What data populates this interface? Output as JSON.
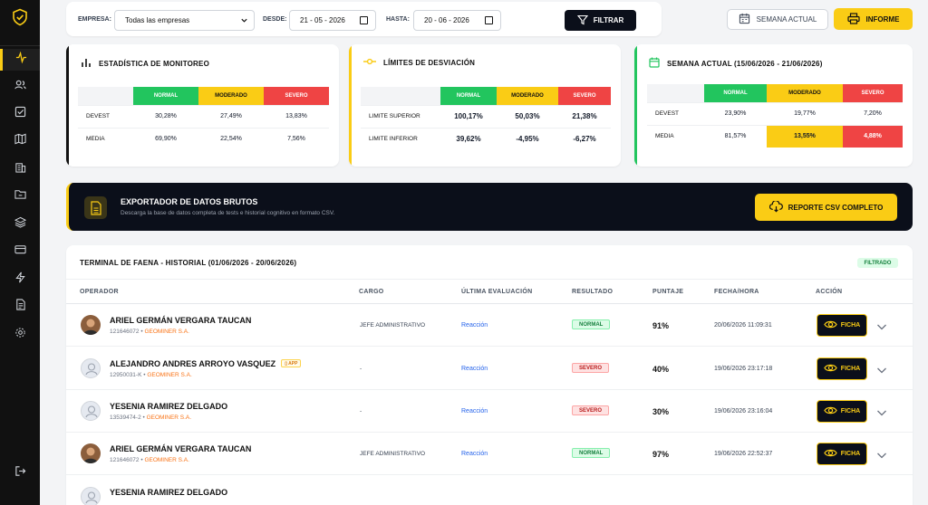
{
  "topbar": {
    "empresa_label": "EMPRESA:",
    "empresa_value": "Todas las empresas",
    "desde_label": "DESDE:",
    "desde_value": "21 - 05 - 2026",
    "hasta_label": "HASTA:",
    "hasta_value": "20 - 06 - 2026",
    "filtrar": "FILTRAR",
    "semana_actual": "SEMANA ACTUAL",
    "informe": "INFORME"
  },
  "colors": {
    "accent": "#facc15",
    "dark": "#0b0f1a",
    "normal": "#22c55e",
    "moderado": "#facc15",
    "severo": "#ef4444"
  },
  "cards": {
    "monitoreo": {
      "title": "ESTADÍSTICA DE MONITOREO",
      "headers": [
        "NORMAL",
        "MODERADO",
        "SEVERO"
      ],
      "rows": [
        {
          "label": "DEVEST",
          "values": [
            "30,28%",
            "27,49%",
            "13,83%"
          ]
        },
        {
          "label": "MEDIA",
          "values": [
            "69,90%",
            "22,54%",
            "7,56%"
          ]
        }
      ]
    },
    "desviacion": {
      "title": "LÍMITES DE DESVIACIÓN",
      "headers": [
        "NORMAL",
        "MODERADO",
        "SEVERO"
      ],
      "rows": [
        {
          "label": "LIMITE SUPERIOR",
          "values": [
            "100,17%",
            "50,03%",
            "21,38%"
          ]
        },
        {
          "label": "LIMITE INFERIOR",
          "values": [
            "39,62%",
            "-4,95%",
            "-6,27%"
          ]
        }
      ]
    },
    "semana": {
      "title": "SEMANA ACTUAL (15/06/2026 - 21/06/2026)",
      "headers": [
        "NORMAL",
        "MODERADO",
        "SEVERO"
      ],
      "rows": [
        {
          "label": "DEVEST",
          "values": [
            "23,90%",
            "19,77%",
            "7,20%"
          ]
        },
        {
          "label": "MEDIA",
          "values": [
            "81,57%",
            "13,55%",
            "4,88%"
          ]
        }
      ]
    }
  },
  "exporter": {
    "title": "EXPORTADOR DE DATOS BRUTOS",
    "subtitle": "Descarga la base de datos completa de tests e historial cognitivo en formato CSV.",
    "button": "REPORTE CSV COMPLETO"
  },
  "history": {
    "title": "TERMINAL DE FAENA - HISTORIAL (01/06/2026 - 20/06/2026)",
    "badge": "FILTRADO",
    "columns": {
      "operador": "OPERADOR",
      "cargo": "CARGO",
      "evaluacion": "ÚLTIMA EVALUACIÓN",
      "resultado": "RESULTADO",
      "puntaje": "PUNTAJE",
      "fecha": "FECHA/HORA",
      "accion": "ACCIÓN"
    },
    "ficha_label": "FICHA",
    "rows": [
      {
        "name": "ARIEL GERMÁN VERGARA TAUCAN",
        "id": "121646072",
        "company": "GEOMINER S.A.",
        "app": "",
        "cargo": "JEFE ADMINISTRATIVO",
        "eval": "Reacción",
        "result": "NORMAL",
        "score": "91%",
        "date": "20/06/2026 11:09:31"
      },
      {
        "name": "ALEJANDRO ANDRES ARROYO VASQUEZ",
        "id": "12950031-K",
        "company": "GEOMINER S.A.",
        "app": "APP",
        "cargo": "-",
        "eval": "Reacción",
        "result": "SEVERO",
        "score": "40%",
        "date": "19/06/2026 23:17:18"
      },
      {
        "name": "YESENIA RAMIREZ DELGADO",
        "id": "13539474-2",
        "company": "GEOMINER S.A.",
        "app": "",
        "cargo": "-",
        "eval": "Reacción",
        "result": "SEVERO",
        "score": "30%",
        "date": "19/06/2026 23:16:04"
      },
      {
        "name": "ARIEL GERMÁN VERGARA TAUCAN",
        "id": "121646072",
        "company": "GEOMINER S.A.",
        "app": "",
        "cargo": "JEFE ADMINISTRATIVO",
        "eval": "Reacción",
        "result": "NORMAL",
        "score": "97%",
        "date": "19/06/2026 22:52:37"
      },
      {
        "name": "YESENIA RAMIREZ DELGADO",
        "id": "",
        "company": "",
        "app": "",
        "cargo": "",
        "eval": "",
        "result": "",
        "score": "",
        "date": ""
      }
    ]
  }
}
